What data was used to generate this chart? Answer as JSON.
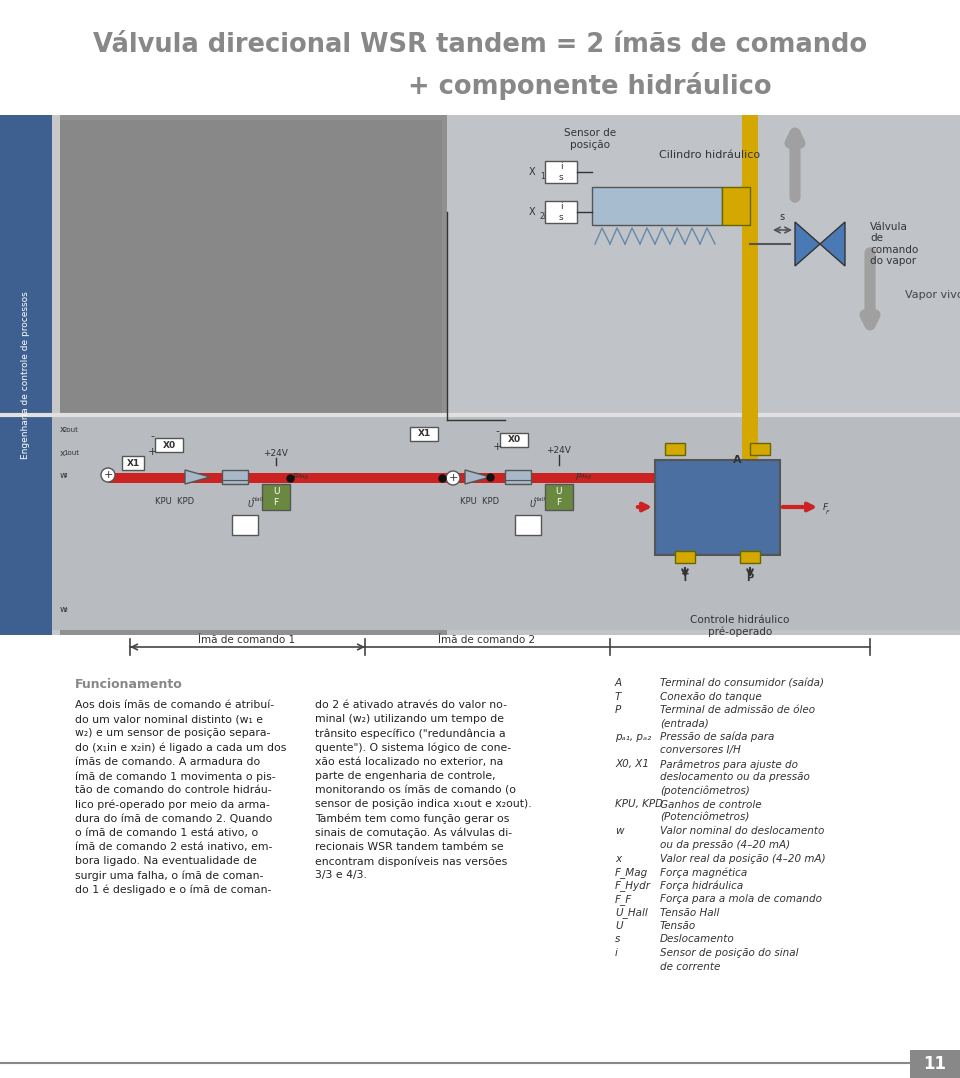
{
  "title_line1": "Válvula direcional WSR tandem = 2 ímãs de comando",
  "title_line2": "+ componente hidráulico",
  "bg_color": "#ffffff",
  "title_color": "#888888",
  "title_fontsize": 18.5,
  "gray_panel_color": "#c8c8c8",
  "photo_gray": "#a0a0a0",
  "dark_gray": "#808080",
  "blue_sidebar_color": "#3d6090",
  "diagram_bg": "#b8bcc4",
  "circuit_bg": "#c0c4c8",
  "sidebar_text": "Engenharia de controle de processos",
  "yellow_color": "#d4a800",
  "blue_box_color": "#5070a0",
  "red_color": "#cc2222",
  "white": "#ffffff",
  "dark_text": "#222222",
  "mid_text": "#555555",
  "light_text": "#999999",
  "funcionamento_title": "Funcionamento",
  "text_left_col": [
    "Aos dois ímãs de comando é atribuí-",
    "do um valor nominal distinto (w₁ e",
    "w₂) e um sensor de posição separa-",
    "do (x₁in e x₂in) é ligado a cada um dos",
    "ímãs de comando. A armadura do",
    "ímã de comando 1 movimenta o pis-",
    "tão de comando do controle hidráu-",
    "lico pré-operado por meio da arma-",
    "dura do ímã de comando 2. Quando",
    "o ímã de comando 1 está ativo, o",
    "ímã de comando 2 está inativo, em-",
    "bora ligado. Na eventualidade de",
    "surgir uma falha, o ímã de coman-",
    "do 1 é desligado e o ímã de coman-"
  ],
  "text_mid_col": [
    "do 2 é ativado através do valor no-",
    "minal (w₂) utilizando um tempo de",
    "trânsito específico (\"redundância a",
    "quente\"). O sistema lógico de cone-",
    "xão está localizado no exterior, na",
    "parte de engenharia de controle,",
    "monitorando os ímãs de comando (o",
    "sensor de posição indica x₁out e x₂out).",
    "Também tem como função gerar os",
    "sinais de comutação. As válvulas di-",
    "recionais WSR tandem também se",
    "encontram disponíveis nas versões",
    "3/3 e 4/3."
  ],
  "right_col": [
    [
      "A",
      "Terminal do consumidor (saída)"
    ],
    [
      "T",
      "Conexão do tanque"
    ],
    [
      "P",
      "Terminal de admissão de óleo"
    ],
    [
      "",
      "(entrada)"
    ],
    [
      "pₐ₁, pₐ₂",
      "Pressão de saída para"
    ],
    [
      "",
      "conversores I/H"
    ],
    [
      "X0, X1",
      "Parâmetros para ajuste do"
    ],
    [
      "",
      "deslocamento ou da pressão"
    ],
    [
      "",
      "(potenciômetros)"
    ],
    [
      "KPU, KPD",
      "Ganhos de controle"
    ],
    [
      "",
      "(Potenciômetros)"
    ],
    [
      "w",
      "Valor nominal do deslocamento"
    ],
    [
      "",
      "ou da pressão (4–20 mA)"
    ],
    [
      "x",
      "Valor real da posição (4–20 mA)"
    ],
    [
      "F_Mag",
      "Força magnética"
    ],
    [
      "F_Hydr",
      "Força hidráulica"
    ],
    [
      "F_F",
      "Força para a mola de comando"
    ],
    [
      "U_Hall",
      "Tensão Hall"
    ],
    [
      "U",
      "Tensão"
    ],
    [
      "s",
      "Deslocamento"
    ],
    [
      "i",
      "Sensor de posição do sinal"
    ],
    [
      "",
      "de corrente"
    ]
  ],
  "diagram_label1": "Ímã de comando 1",
  "diagram_label2": "Ímã de comando 2",
  "diagram_label3": "Controle hidráulico\npré-operado",
  "page_number": "11",
  "sensor_label": "Sensor de\nposição",
  "cilindro_label": "Cilindro hidráulico",
  "valvula_label": "Válvula\nde\ncomando\ndo vapor",
  "vapor_label": "Vapor vivo"
}
